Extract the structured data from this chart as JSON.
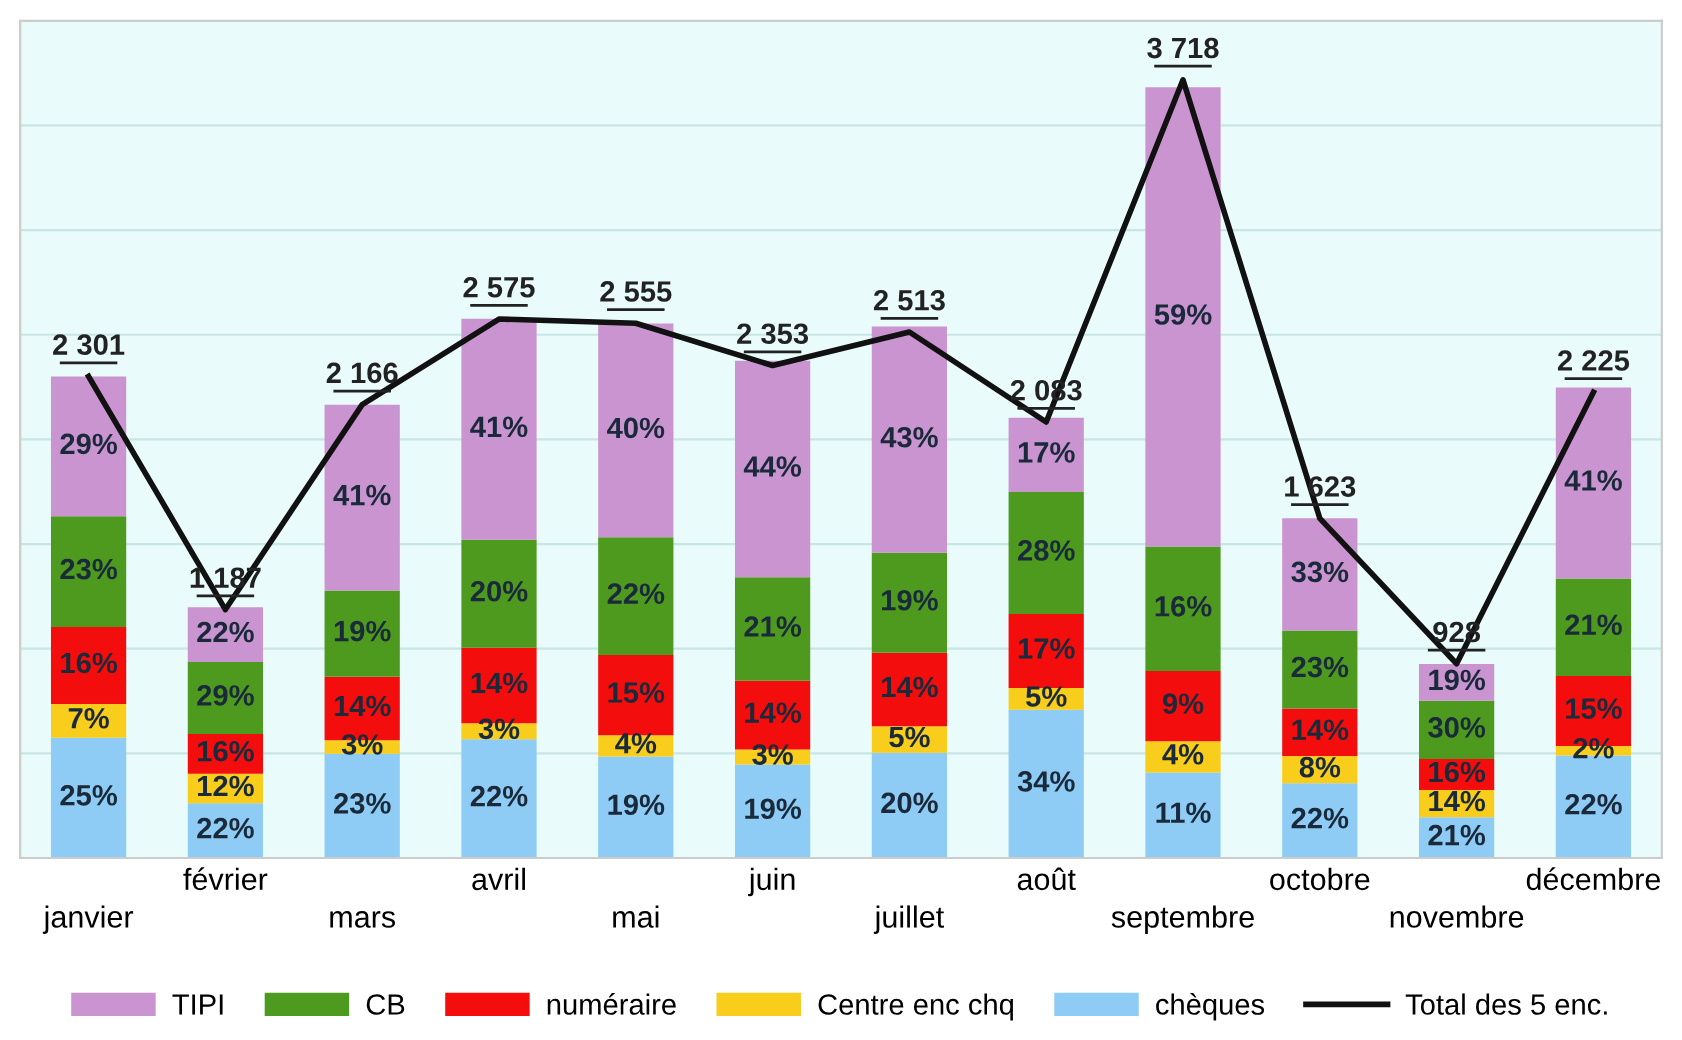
{
  "chart_data": {
    "type": "bar",
    "stacked": true,
    "categories": [
      "janvier",
      "février",
      "mars",
      "avril",
      "mai",
      "juin",
      "juillet",
      "août",
      "septembre",
      "octobre",
      "novembre",
      "décembre"
    ],
    "series": [
      {
        "name": "chèques",
        "color": "#8ecbf5",
        "values": [
          575,
          261,
          498,
          567,
          485,
          447,
          503,
          708,
          409,
          357,
          195,
          490
        ]
      },
      {
        "name": "Centre enc chq",
        "color": "#f9cd1b",
        "values": [
          161,
          142,
          65,
          77,
          102,
          71,
          126,
          104,
          149,
          130,
          130,
          45
        ]
      },
      {
        "name": "numéraire",
        "color": "#f40d0d",
        "values": [
          368,
          190,
          303,
          361,
          383,
          329,
          352,
          354,
          335,
          227,
          148,
          334
        ]
      },
      {
        "name": "CB",
        "color": "#4e9a1e",
        "values": [
          529,
          344,
          412,
          515,
          562,
          494,
          477,
          583,
          595,
          373,
          278,
          467
        ]
      },
      {
        "name": "TIPI",
        "color": "#c994d0",
        "values": [
          667,
          261,
          888,
          1056,
          1022,
          1035,
          1081,
          354,
          2194,
          536,
          176,
          912
        ]
      },
      {
        "name": "Total des 5 enc.",
        "type": "line",
        "color": "#111111",
        "values": [
          2301,
          1187,
          2166,
          2575,
          2555,
          2353,
          2513,
          2083,
          3718,
          1623,
          928,
          2225
        ],
        "value_labels": [
          "2 301",
          "1 187",
          "2 166",
          "2 575",
          "2 555",
          "2 353",
          "2 513",
          "2 083",
          "3 718",
          "1 623",
          "928",
          "2 225"
        ]
      }
    ],
    "annotations": [
      "25%",
      "22%",
      "23%",
      "22%",
      "19%",
      "19%",
      "20%",
      "34%",
      "11%",
      "22%",
      "21%",
      "22%",
      "7%",
      "12%",
      "3%",
      "3%",
      "4%",
      "3%",
      "5%",
      "5%",
      "4%",
      "8%",
      "14%",
      "2%",
      "16%",
      "16%",
      "14%",
      "14%",
      "15%",
      "14%",
      "14%",
      "17%",
      "9%",
      "14%",
      "16%",
      "15%",
      "23%",
      "29%",
      "19%",
      "20%",
      "22%",
      "21%",
      "19%",
      "28%",
      "16%",
      "23%",
      "30%",
      "21%",
      "29%",
      "22%",
      "41%",
      "41%",
      "40%",
      "44%",
      "43%",
      "17%",
      "59%",
      "33%",
      "19%",
      "41%"
    ],
    "ylim": [
      0,
      4000
    ],
    "yticks": [
      {
        "value": 0,
        "label": null
      },
      {
        "value": 500,
        "label": null
      },
      {
        "value": 1000,
        "label": null
      },
      {
        "value": 1500,
        "label": null
      },
      {
        "value": 2000,
        "label": null
      },
      {
        "value": 2500,
        "label": null
      },
      {
        "value": 3000,
        "label": null
      },
      {
        "value": 3500,
        "label": null
      },
      {
        "value": 4000,
        "label": null
      }
    ],
    "grid": "y",
    "legend": "bottom",
    "marker": "none",
    "line_style": "solid"
  }
}
